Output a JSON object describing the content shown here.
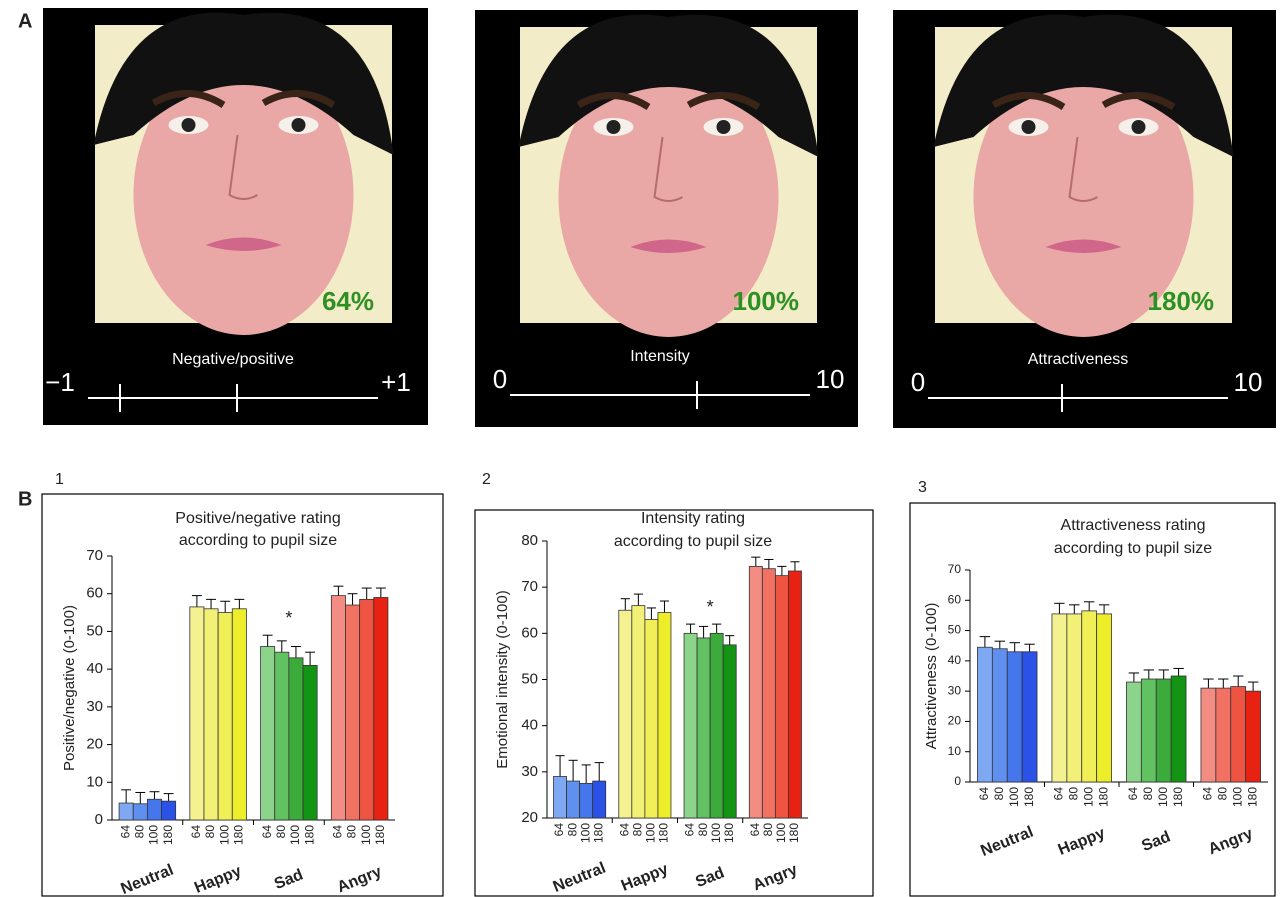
{
  "panel_a": {
    "label": "A",
    "photos": [
      {
        "percent": "64%",
        "scale_title": "Negative/positive",
        "scale_min": "−1",
        "scale_max": "+1"
      },
      {
        "percent": "100%",
        "scale_title": "Intensity",
        "scale_min": "0",
        "scale_max": "10"
      },
      {
        "percent": "180%",
        "scale_title": "Attractiveness",
        "scale_min": "0",
        "scale_max": "10"
      }
    ]
  },
  "panel_b_label": "B",
  "chart_data": [
    {
      "type": "bar",
      "panel": "1",
      "title": [
        "Positive/negative rating",
        "according to pupil size"
      ],
      "ylabel": "Positive/negative (0-100)",
      "ylim": [
        0,
        70
      ],
      "yticks": [
        0,
        10,
        20,
        30,
        40,
        50,
        60,
        70
      ],
      "bar_labels": [
        "64",
        "80",
        "100",
        "180"
      ],
      "annotations": [
        {
          "text": "*",
          "category": "Sad"
        }
      ],
      "groups": [
        {
          "name": "Neutral",
          "colors": [
            "#7ea8f2",
            "#5f90ef",
            "#4676ec",
            "#2a52e6"
          ],
          "values": [
            4.5,
            4.3,
            5.5,
            5
          ],
          "errors": [
            3.5,
            3,
            2,
            2
          ]
        },
        {
          "name": "Happy",
          "colors": [
            "#f4f290",
            "#f2f076",
            "#f0ef58",
            "#eeed2a"
          ],
          "values": [
            56.5,
            56,
            55,
            56
          ],
          "errors": [
            3,
            2.5,
            3,
            2.5
          ]
        },
        {
          "name": "Sad",
          "colors": [
            "#8cd48c",
            "#62c262",
            "#3cab3c",
            "#149414"
          ],
          "values": [
            46,
            44.5,
            43,
            41
          ],
          "errors": [
            3,
            3,
            3,
            3.5
          ]
        },
        {
          "name": "Angry",
          "colors": [
            "#f38c82",
            "#f17262",
            "#ef5442",
            "#e82212"
          ],
          "values": [
            59.5,
            57,
            58.5,
            59
          ],
          "errors": [
            2.5,
            3,
            3,
            2.5
          ]
        }
      ]
    },
    {
      "type": "bar",
      "panel": "2",
      "title": [
        "Intensity rating",
        "according to pupil size"
      ],
      "ylabel": "Emotional intensity (0-100)",
      "ylim": [
        20,
        80
      ],
      "yticks": [
        20,
        30,
        40,
        50,
        60,
        70,
        80
      ],
      "bar_labels": [
        "64",
        "80",
        "100",
        "180"
      ],
      "annotations": [
        {
          "text": "*",
          "category": "Sad"
        }
      ],
      "groups": [
        {
          "name": "Neutral",
          "colors": [
            "#7ea8f2",
            "#5f90ef",
            "#4676ec",
            "#2a52e6"
          ],
          "values": [
            29,
            28,
            27.5,
            28
          ],
          "errors": [
            4.5,
            4.5,
            4,
            4
          ]
        },
        {
          "name": "Happy",
          "colors": [
            "#f4f290",
            "#f2f076",
            "#f0ef58",
            "#eeed2a"
          ],
          "values": [
            65,
            66,
            63,
            64.5
          ],
          "errors": [
            2.5,
            2.5,
            2.5,
            2.5
          ]
        },
        {
          "name": "Sad",
          "colors": [
            "#8cd48c",
            "#62c262",
            "#3cab3c",
            "#149414"
          ],
          "values": [
            60,
            59,
            60,
            57.5
          ],
          "errors": [
            2,
            2.5,
            2,
            2
          ]
        },
        {
          "name": "Angry",
          "colors": [
            "#f38c82",
            "#f17262",
            "#ef5442",
            "#e82212"
          ],
          "values": [
            74.5,
            74,
            72.5,
            73.5
          ],
          "errors": [
            2,
            2,
            2,
            2
          ]
        }
      ]
    },
    {
      "type": "bar",
      "panel": "3",
      "title": [
        "Attractiveness rating",
        "according to pupil size"
      ],
      "ylabel": "Attractiveness (0-100)",
      "ylim": [
        0,
        70
      ],
      "yticks": [
        0,
        10,
        20,
        30,
        40,
        50,
        60,
        70
      ],
      "bar_labels": [
        "64",
        "80",
        "100",
        "180"
      ],
      "annotations": [],
      "groups": [
        {
          "name": "Neutral",
          "colors": [
            "#7ea8f2",
            "#5f90ef",
            "#4676ec",
            "#2a52e6"
          ],
          "values": [
            44.5,
            44,
            43,
            43
          ],
          "errors": [
            3.5,
            2.5,
            3,
            2.5
          ]
        },
        {
          "name": "Happy",
          "colors": [
            "#f4f290",
            "#f2f076",
            "#f0ef58",
            "#eeed2a"
          ],
          "values": [
            55.5,
            55.5,
            56.5,
            55.5
          ],
          "errors": [
            3.5,
            3,
            3,
            3
          ]
        },
        {
          "name": "Sad",
          "colors": [
            "#8cd48c",
            "#62c262",
            "#3cab3c",
            "#149414"
          ],
          "values": [
            33,
            34,
            34,
            35
          ],
          "errors": [
            3,
            3,
            3,
            2.5
          ]
        },
        {
          "name": "Angry",
          "colors": [
            "#f38c82",
            "#f17262",
            "#ef5442",
            "#e82212"
          ],
          "values": [
            31,
            31,
            31.5,
            30
          ],
          "errors": [
            3,
            3,
            3.5,
            3
          ]
        }
      ]
    }
  ]
}
